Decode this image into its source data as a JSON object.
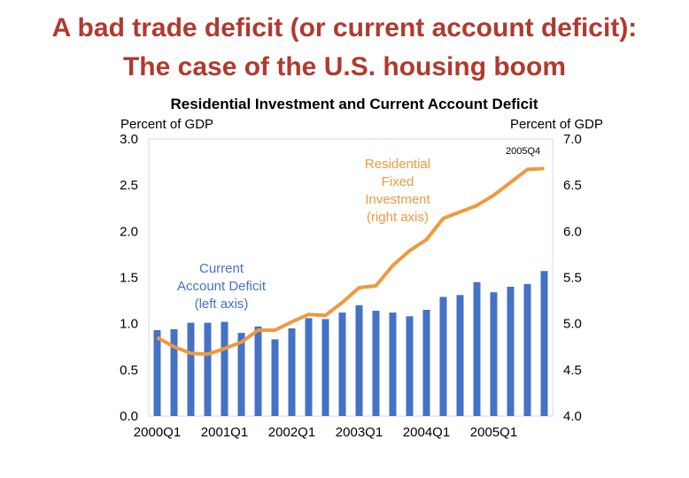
{
  "slide": {
    "title_line1": "A bad trade deficit (or current account deficit):",
    "title_line2": "The case of the U.S. housing boom"
  },
  "colors": {
    "title": "#b03a2e",
    "bars": "#4472c4",
    "line": "#ed9a3e",
    "annotation_blue": "#4472c4",
    "annotation_orange": "#ed9a3e"
  },
  "chart_data": {
    "type": "bar",
    "title": "Residential Investment and Current Account Deficit",
    "y_left_label": "Percent of GDP",
    "y_right_label": "Percent of GDP",
    "y_left_range": [
      0,
      3
    ],
    "y_right_range": [
      4,
      7
    ],
    "y_left_ticks": [
      "0.0",
      "0.5",
      "1.0",
      "1.5",
      "2.0",
      "2.5",
      "3.0"
    ],
    "y_right_ticks": [
      "4.0",
      "4.5",
      "5.0",
      "5.5",
      "6.0",
      "6.5",
      "7.0"
    ],
    "x_tick_labels": [
      "2000Q1",
      "2001Q1",
      "2002Q1",
      "2003Q1",
      "2004Q1",
      "2005Q1"
    ],
    "grid": false,
    "legend": "none",
    "annotations": {
      "cad": [
        "Current",
        "Account Deficit",
        "(left axis)"
      ],
      "rfi": [
        "Residential",
        "Fixed",
        "Investment",
        "(right axis)"
      ],
      "last_period": "2005Q4"
    },
    "quarters": [
      "2000Q1",
      "2000Q2",
      "2000Q3",
      "2000Q4",
      "2001Q1",
      "2001Q2",
      "2001Q3",
      "2001Q4",
      "2002Q1",
      "2002Q2",
      "2002Q3",
      "2002Q4",
      "2003Q1",
      "2003Q2",
      "2003Q3",
      "2003Q4",
      "2004Q1",
      "2004Q2",
      "2004Q3",
      "2004Q4",
      "2005Q1",
      "2005Q2",
      "2005Q3",
      "2005Q4"
    ],
    "series": [
      {
        "name": "Current Account Deficit (left axis)",
        "kind": "bar",
        "axis": "left",
        "values": [
          0.93,
          0.94,
          1.01,
          1.01,
          1.02,
          0.9,
          0.97,
          0.83,
          0.95,
          1.06,
          1.05,
          1.12,
          1.2,
          1.14,
          1.12,
          1.08,
          1.15,
          1.29,
          1.31,
          1.45,
          1.34,
          1.4,
          1.43,
          1.57
        ]
      },
      {
        "name": "Residential Fixed Investment (right axis)",
        "kind": "line",
        "axis": "right",
        "values": [
          4.85,
          4.75,
          4.68,
          4.67,
          4.73,
          4.8,
          4.93,
          4.93,
          5.02,
          5.1,
          5.09,
          5.23,
          5.39,
          5.41,
          5.63,
          5.79,
          5.91,
          6.14,
          6.21,
          6.28,
          6.39,
          6.53,
          6.67,
          6.68
        ]
      }
    ]
  }
}
